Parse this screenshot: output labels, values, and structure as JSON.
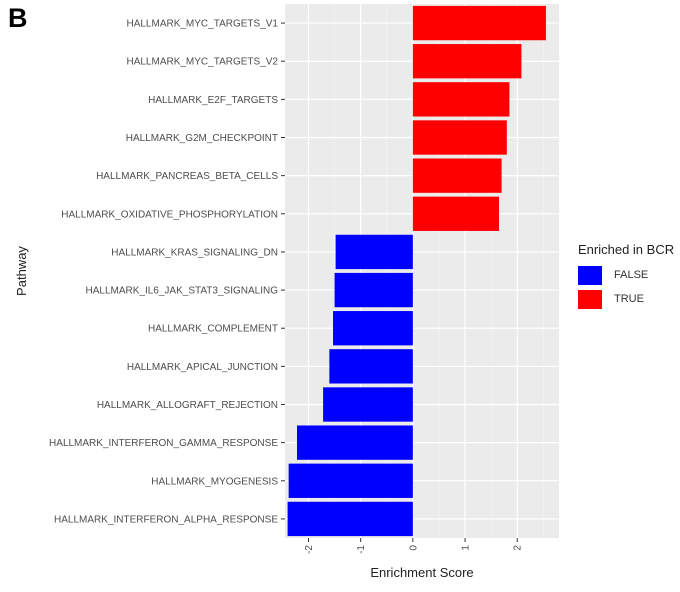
{
  "figure": {
    "panel_letter": "B"
  },
  "chart_data": {
    "type": "bar",
    "orientation": "horizontal",
    "title": "",
    "xlabel": "Enrichment Score",
    "ylabel": "Pathway",
    "xlim": [
      -2.45,
      2.8
    ],
    "xticks": [
      -2,
      -1,
      0,
      1,
      2
    ],
    "xtick_labels": [
      "-2",
      "-1",
      "0",
      "1",
      "2"
    ],
    "grid": true,
    "legend_position": "right",
    "legend": {
      "title": "Enriched in BCR",
      "entries": [
        {
          "label": "FALSE",
          "color": "#0000ff"
        },
        {
          "label": "TRUE",
          "color": "#ff0000"
        }
      ]
    },
    "categories": [
      "HALLMARK_MYC_TARGETS_V1",
      "HALLMARK_MYC_TARGETS_V2",
      "HALLMARK_E2F_TARGETS",
      "HALLMARK_G2M_CHECKPOINT",
      "HALLMARK_PANCREAS_BETA_CELLS",
      "HALLMARK_OXIDATIVE_PHOSPHORYLATION",
      "HALLMARK_KRAS_SIGNALING_DN",
      "HALLMARK_IL6_JAK_STAT3_SIGNALING",
      "HALLMARK_COMPLEMENT",
      "HALLMARK_APICAL_JUNCTION",
      "HALLMARK_ALLOGRAFT_REJECTION",
      "HALLMARK_INTERFERON_GAMMA_RESPONSE",
      "HALLMARK_MYOGENESIS",
      "HALLMARK_INTERFERON_ALPHA_RESPONSE"
    ],
    "values": [
      2.55,
      2.08,
      1.85,
      1.8,
      1.7,
      1.65,
      -1.48,
      -1.5,
      -1.53,
      -1.6,
      -1.72,
      -2.22,
      -2.38,
      -2.4
    ],
    "enriched": [
      "TRUE",
      "TRUE",
      "TRUE",
      "TRUE",
      "TRUE",
      "TRUE",
      "FALSE",
      "FALSE",
      "FALSE",
      "FALSE",
      "FALSE",
      "FALSE",
      "FALSE",
      "FALSE"
    ],
    "colors": {
      "panel_bg": "#ebebeb",
      "grid_major": "#ffffff",
      "true": "#ff0000",
      "false": "#0000ff"
    }
  }
}
